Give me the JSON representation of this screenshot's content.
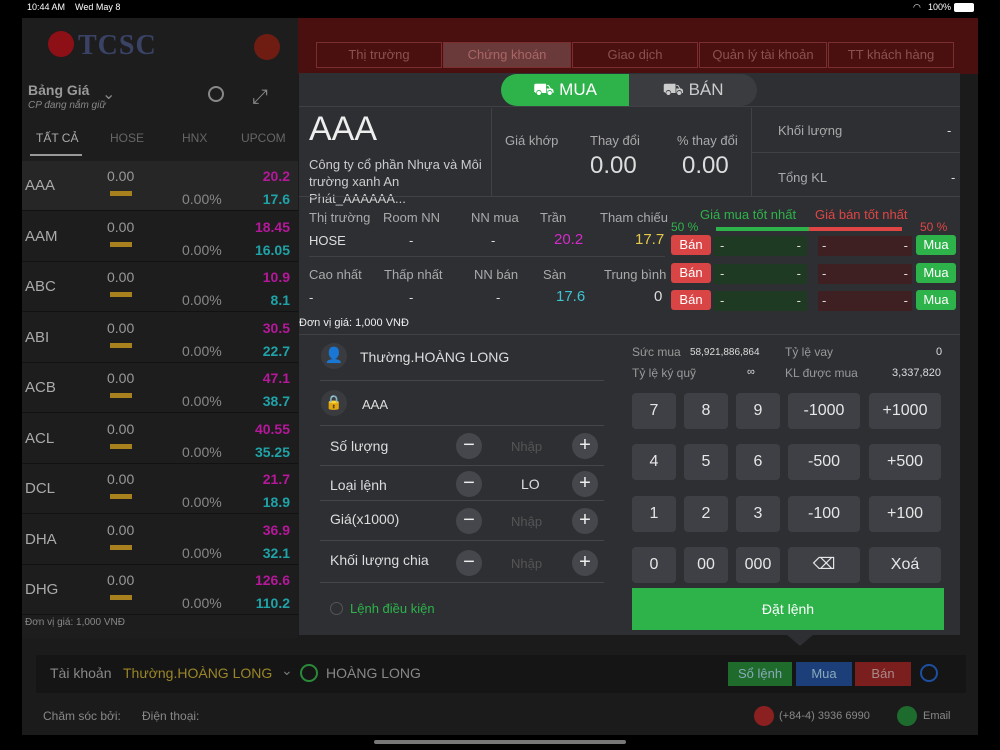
{
  "status": {
    "time": "10:44 AM",
    "date": "Wed May 8",
    "battery": "100%"
  },
  "logo": "TCSC",
  "nav": [
    "Thị trường",
    "Chứng khoán",
    "Giao dịch",
    "Quản lý tài khoản",
    "TT khách hàng"
  ],
  "left": {
    "title": "Bảng Giá",
    "subtitle": "CP đang nắm giữ",
    "tabs": [
      "TẤT CẢ",
      "HOSE",
      "HNX",
      "UPCOM"
    ],
    "rows": [
      {
        "s": "AAA",
        "z": "0.00",
        "p": "0.00%",
        "c": "20.2",
        "f": "17.6"
      },
      {
        "s": "AAM",
        "z": "0.00",
        "p": "0.00%",
        "c": "18.45",
        "f": "16.05"
      },
      {
        "s": "ABC",
        "z": "0.00",
        "p": "0.00%",
        "c": "10.9",
        "f": "8.1"
      },
      {
        "s": "ABI",
        "z": "0.00",
        "p": "0.00%",
        "c": "30.5",
        "f": "22.7"
      },
      {
        "s": "ACB",
        "z": "0.00",
        "p": "0.00%",
        "c": "47.1",
        "f": "38.7"
      },
      {
        "s": "ACL",
        "z": "0.00",
        "p": "0.00%",
        "c": "40.55",
        "f": "35.25"
      },
      {
        "s": "DCL",
        "z": "0.00",
        "p": "0.00%",
        "c": "21.7",
        "f": "18.9"
      },
      {
        "s": "DHA",
        "z": "0.00",
        "p": "0.00%",
        "c": "36.9",
        "f": "32.1"
      },
      {
        "s": "DHG",
        "z": "0.00",
        "p": "0.00%",
        "c": "126.6",
        "f": "110.2"
      }
    ],
    "unit": "Đơn vị giá: 1,000 VNĐ"
  },
  "modal": {
    "buy": "MUA",
    "sell": "BÁN",
    "symbol": "AAA",
    "company": "Công ty cổ phần Nhựa và Môi trường xanh An Phát_AAAAAA...",
    "gia_khop_lbl": "Giá khớp",
    "thay_doi_lbl": "Thay đổi",
    "thay_doi": "0.00",
    "pct_lbl": "% thay đổi",
    "pct": "0.00",
    "kl_lbl": "Khối lượng",
    "kl": "-",
    "tkl_lbl": "Tổng KL",
    "tkl": "-",
    "thi_truong_lbl": "Thị trường",
    "thi_truong": "HOSE",
    "room_lbl": "Room NN",
    "room": "-",
    "nnmua_lbl": "NN mua",
    "nnmua": "-",
    "tran_lbl": "Trần",
    "tran": "20.2",
    "tc_lbl": "Tham chiếu",
    "tc": "17.7",
    "cao_lbl": "Cao nhất",
    "cao": "-",
    "thap_lbl": "Thấp nhất",
    "thap": "-",
    "nnban_lbl": "NN bán",
    "nnban": "-",
    "san_lbl": "Sàn",
    "san": "17.6",
    "tb_lbl": "Trung bình",
    "tb": "0",
    "pct_left": "50 %",
    "pct_right": "50 %",
    "best_buy": "Giá mua tốt nhất",
    "best_sell": "Giá bán tốt nhất",
    "ban": "Bán",
    "mua": "Mua",
    "dash": "-",
    "unit": "Đơn vị giá: 1,000 VNĐ",
    "account": "Thường.HOÀNG LONG",
    "stock": "AAA",
    "so_luong": "Số lượng",
    "loai_lenh": "Loại lệnh",
    "loai_val": "LO",
    "gia": "Giá(x1000)",
    "klchia": "Khối lượng chia",
    "nhap": "Nhập",
    "dieu_kien": "Lệnh điều kiện",
    "suc_mua_lbl": "Sức mua",
    "suc_mua": "58,921,886,864",
    "ty_le_vay_lbl": "Tỷ lệ vay",
    "ty_le_vay": "0",
    "ky_quy_lbl": "Tỷ lệ ký quỹ",
    "ky_quy": "∞",
    "kl_duoc_mua_lbl": "KL được mua",
    "kl_duoc_mua": "3,337,820",
    "keys": [
      "7",
      "8",
      "9",
      "-1000",
      "+1000",
      "4",
      "5",
      "6",
      "-500",
      "+500",
      "1",
      "2",
      "3",
      "-100",
      "+100",
      "0",
      "00",
      "000",
      "⌫",
      "Xoá"
    ],
    "dat_lenh": "Đặt lệnh"
  },
  "bottom": {
    "tk_lbl": "Tài khoản",
    "tk": "Thường.HOÀNG LONG",
    "name": "HOÀNG LONG",
    "so_lenh": "Sổ lệnh",
    "mua": "Mua",
    "ban": "Bán",
    "cham_soc": "Chăm sóc bởi:",
    "dien_thoai": "Điện thoại:",
    "phone": "(+84-4) 3936 6990",
    "email": "Email"
  }
}
